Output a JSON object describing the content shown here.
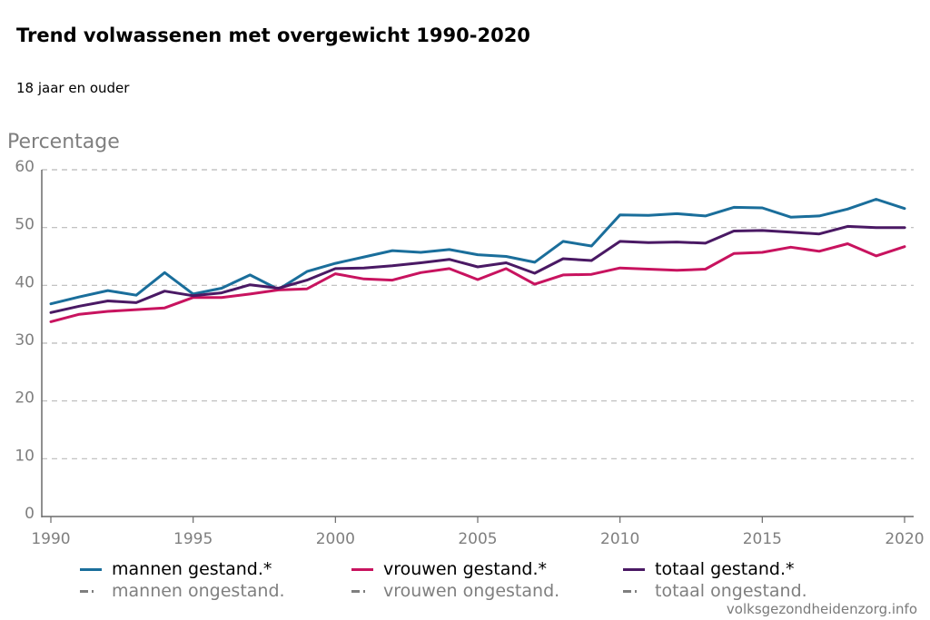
{
  "title": "Trend volwassenen met overgewicht 1990-2020",
  "subtitle": "18 jaar en ouder",
  "source": "volksgezondheidenzorg.info",
  "colors": {
    "mannen": "#1a6e9b",
    "vrouwen": "#c8135f",
    "totaal": "#4a1964",
    "grid": "#b9b9b9",
    "axis_text": "#7f7f7f",
    "ongestand": "#7f7f7f"
  },
  "legend": {
    "items": [
      {
        "label": "mannen gestand.*",
        "color": "#1a6e9b"
      },
      {
        "label": "vrouwen gestand.*",
        "color": "#c8135f"
      },
      {
        "label": "totaal gestand.*",
        "color": "#4a1964"
      },
      {
        "label": "mannen ongestand.",
        "color": "#7f7f7f"
      },
      {
        "label": "vrouwen ongestand.",
        "color": "#7f7f7f"
      },
      {
        "label": "totaal ongestand.",
        "color": "#7f7f7f"
      }
    ]
  },
  "chart_data": {
    "type": "line",
    "title": "Trend volwassenen met overgewicht 1990-2020",
    "subtitle": "18 jaar en ouder",
    "ylabel": "Percentage",
    "xlabel": "",
    "ylim": [
      0,
      60
    ],
    "yticks": [
      0,
      10,
      20,
      30,
      40,
      50,
      60
    ],
    "xlim": [
      1990,
      2020
    ],
    "xticks": [
      1990,
      1995,
      2000,
      2005,
      2010,
      2015,
      2020
    ],
    "grid": "horizontal dashed",
    "legend_position": "bottom",
    "x": [
      1990,
      1991,
      1992,
      1993,
      1994,
      1995,
      1996,
      1997,
      1998,
      1999,
      2000,
      2001,
      2002,
      2003,
      2004,
      2005,
      2006,
      2007,
      2008,
      2009,
      2010,
      2011,
      2012,
      2013,
      2014,
      2015,
      2016,
      2017,
      2018,
      2019,
      2020
    ],
    "series": [
      {
        "name": "mannen gestand.*",
        "color": "#1a6e9b",
        "values": [
          36.8,
          38.0,
          39.1,
          38.3,
          42.2,
          38.5,
          39.5,
          41.8,
          39.3,
          42.4,
          43.8,
          44.9,
          46.0,
          45.7,
          46.2,
          45.3,
          45.0,
          44.0,
          47.6,
          46.8,
          52.2,
          52.1,
          52.4,
          52.0,
          53.5,
          53.4,
          51.8,
          52.0,
          53.2,
          54.9,
          53.3
        ]
      },
      {
        "name": "vrouwen gestand.*",
        "color": "#c8135f",
        "values": [
          33.7,
          35.0,
          35.5,
          35.8,
          36.1,
          37.9,
          37.9,
          38.5,
          39.2,
          39.4,
          42.0,
          41.1,
          40.9,
          42.2,
          42.9,
          41.0,
          42.9,
          40.2,
          41.8,
          41.9,
          43.0,
          42.8,
          42.6,
          42.8,
          45.5,
          45.7,
          46.6,
          45.9,
          47.2,
          45.1,
          46.7
        ]
      },
      {
        "name": "totaal gestand.*",
        "color": "#4a1964",
        "values": [
          35.3,
          36.4,
          37.3,
          37.0,
          39.0,
          38.2,
          38.7,
          40.1,
          39.5,
          40.9,
          42.9,
          43.0,
          43.4,
          43.9,
          44.5,
          43.2,
          43.9,
          42.1,
          44.6,
          44.3,
          47.6,
          47.4,
          47.5,
          47.3,
          49.4,
          49.5,
          49.2,
          48.9,
          50.2,
          50.0,
          50.0
        ]
      }
    ]
  }
}
